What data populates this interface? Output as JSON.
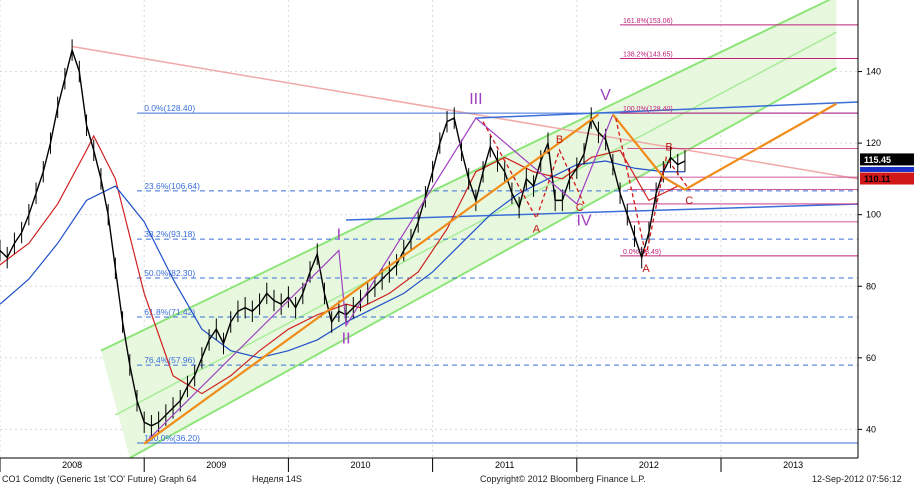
{
  "chart_data": {
    "type": "line",
    "ylim": [
      32,
      160
    ],
    "xlim": [
      2007.5,
      2013.45
    ],
    "y_ticks": [
      40,
      60,
      80,
      100,
      120,
      140
    ],
    "x_ticks": [
      {
        "label": "2008",
        "at": 2008.0
      },
      {
        "label": "2009",
        "at": 2009.0
      },
      {
        "label": "2010",
        "at": 2010.0
      },
      {
        "label": "2011",
        "at": 2011.0
      },
      {
        "label": "2012",
        "at": 2012.0
      },
      {
        "label": "2013",
        "at": 2013.0
      }
    ],
    "price_series": {
      "name": "",
      "color": "#000000",
      "x": [
        2007.5,
        2007.55,
        2007.6,
        2007.65,
        2007.7,
        2007.75,
        2007.8,
        2007.85,
        2007.9,
        2007.95,
        2008.0,
        2008.05,
        2008.1,
        2008.15,
        2008.2,
        2008.25,
        2008.3,
        2008.35,
        2008.4,
        2008.45,
        2008.5,
        2008.55,
        2008.6,
        2008.65,
        2008.7,
        2008.75,
        2008.8,
        2008.85,
        2008.9,
        2008.95,
        2009.0,
        2009.05,
        2009.1,
        2009.15,
        2009.2,
        2009.25,
        2009.3,
        2009.35,
        2009.4,
        2009.45,
        2009.5,
        2009.55,
        2009.6,
        2009.65,
        2009.7,
        2009.75,
        2009.8,
        2009.85,
        2009.9,
        2009.95,
        2010.0,
        2010.05,
        2010.1,
        2010.15,
        2010.2,
        2010.25,
        2010.3,
        2010.35,
        2010.4,
        2010.45,
        2010.5,
        2010.55,
        2010.6,
        2010.65,
        2010.7,
        2010.75,
        2010.8,
        2010.85,
        2010.9,
        2010.95,
        2011.0,
        2011.05,
        2011.1,
        2011.15,
        2011.2,
        2011.25,
        2011.3,
        2011.35,
        2011.4,
        2011.45,
        2011.5,
        2011.55,
        2011.6,
        2011.65,
        2011.7,
        2011.75,
        2011.8,
        2011.85,
        2011.9,
        2011.95,
        2012.0,
        2012.05,
        2012.1,
        2012.15,
        2012.2,
        2012.25
      ],
      "y": [
        90,
        88,
        92,
        95,
        100,
        106,
        112,
        120,
        130,
        138,
        146,
        140,
        125,
        118,
        110,
        100,
        85,
        70,
        58,
        48,
        42,
        41,
        42,
        44,
        46,
        48,
        52,
        55,
        60,
        65,
        68,
        64,
        70,
        73,
        74,
        73,
        75,
        78,
        76,
        75,
        77,
        74,
        78,
        84,
        89,
        78,
        70,
        73,
        72,
        74,
        76,
        78,
        80,
        82,
        84,
        86,
        90,
        93,
        98,
        105,
        112,
        120,
        126,
        127,
        118,
        110,
        104,
        112,
        119,
        115,
        112,
        106,
        102,
        110,
        108,
        115,
        120,
        104,
        104,
        110,
        113,
        117,
        127,
        123,
        121,
        114,
        106,
        100,
        94,
        88,
        95,
        106,
        112,
        116,
        114,
        115
      ]
    },
    "ma_series": [
      {
        "name": "",
        "color": "#d02020",
        "x": [
          2007.5,
          2007.7,
          2007.9,
          2008.1,
          2008.15,
          2008.3,
          2008.5,
          2008.7,
          2008.9,
          2009.1,
          2009.3,
          2009.5,
          2009.7,
          2009.9,
          2010.0,
          2010.2,
          2010.4,
          2010.6,
          2010.8,
          2011.0,
          2011.2,
          2011.4,
          2011.6,
          2011.8,
          2012.0,
          2012.2
        ],
        "y": [
          86,
          92,
          103,
          118,
          122,
          110,
          78,
          55,
          50,
          55,
          62,
          68,
          72,
          75,
          74,
          78,
          84,
          96,
          112,
          116,
          112,
          110,
          116,
          118,
          104,
          108
        ]
      },
      {
        "name": "",
        "color": "#2050c8",
        "x": [
          2007.5,
          2007.7,
          2007.9,
          2008.1,
          2008.3,
          2008.5,
          2008.7,
          2008.9,
          2009.1,
          2009.3,
          2009.5,
          2009.7,
          2009.9,
          2010.1,
          2010.3,
          2010.5,
          2010.7,
          2010.9,
          2011.1,
          2011.3,
          2011.5,
          2011.7,
          2011.9,
          2012.1,
          2012.25
        ],
        "y": [
          75,
          82,
          92,
          104,
          108,
          98,
          82,
          68,
          62,
          60,
          62,
          65,
          70,
          74,
          78,
          84,
          92,
          100,
          106,
          110,
          114,
          115,
          113,
          112,
          112
        ]
      }
    ],
    "right_tags": [
      {
        "label": "115.45",
        "value": 115.45,
        "bg": "#000000",
        "fg": "#ffffff"
      },
      {
        "label": "110.11",
        "value": 110.11,
        "bg": "#d01818",
        "fg": "#000000"
      }
    ],
    "fib_left": {
      "color": "#3a6fd8",
      "labels": [
        "0.0%(128.40)",
        "23.6%(106.64)",
        "38.2%(93.18)",
        "50.0%(82.30)",
        "61.8%(71.42)",
        "76.4%(57.96)",
        "100.0%(36.20)"
      ],
      "levels": [
        128.4,
        106.64,
        93.18,
        82.3,
        71.42,
        57.96,
        36.2
      ]
    },
    "fib_right": {
      "color": "#c0207a",
      "labels": [
        "161.8%(153.06)",
        "138.2%(143.65)",
        "100.0%(128.40)",
        "0.0%(88.49)"
      ],
      "levels": [
        153.06,
        143.65,
        128.4,
        88.49
      ]
    },
    "wave_labels_purple": [
      "I",
      "II",
      "III",
      "IV",
      "V"
    ],
    "wave_labels_red": [
      "A",
      "B",
      "C",
      "A",
      "B",
      "C"
    ],
    "footer": {
      "left": "CO1 Comdty (Generic 1st 'CO' Future) Graph 64",
      "mid": "Неделя 14S",
      "copyright": "Copyright© 2012 Bloomberg Finance L.P.",
      "date": "12-Sep-2012 07:56:12"
    }
  }
}
